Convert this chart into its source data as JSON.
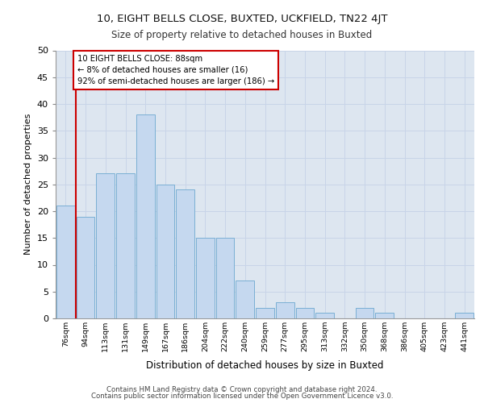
{
  "title1": "10, EIGHT BELLS CLOSE, BUXTED, UCKFIELD, TN22 4JT",
  "title2": "Size of property relative to detached houses in Buxted",
  "xlabel": "Distribution of detached houses by size in Buxted",
  "ylabel": "Number of detached properties",
  "categories": [
    "76sqm",
    "94sqm",
    "113sqm",
    "131sqm",
    "149sqm",
    "167sqm",
    "186sqm",
    "204sqm",
    "222sqm",
    "240sqm",
    "259sqm",
    "277sqm",
    "295sqm",
    "313sqm",
    "332sqm",
    "350sqm",
    "368sqm",
    "386sqm",
    "405sqm",
    "423sqm",
    "441sqm"
  ],
  "values": [
    21,
    19,
    27,
    27,
    38,
    25,
    24,
    15,
    15,
    7,
    2,
    3,
    2,
    1,
    0,
    2,
    1,
    0,
    0,
    0,
    1
  ],
  "bar_color": "#c5d8ef",
  "bar_edge_color": "#7aafd4",
  "annotation_text": "10 EIGHT BELLS CLOSE: 88sqm\n← 8% of detached houses are smaller (16)\n92% of semi-detached houses are larger (186) →",
  "annotation_box_color": "#ffffff",
  "annotation_box_edge_color": "#cc0000",
  "vline_color": "#cc0000",
  "grid_color": "#c8d4e8",
  "background_color": "#dde6f0",
  "footer1": "Contains HM Land Registry data © Crown copyright and database right 2024.",
  "footer2": "Contains public sector information licensed under the Open Government Licence v3.0.",
  "ylim": [
    0,
    50
  ],
  "yticks": [
    0,
    5,
    10,
    15,
    20,
    25,
    30,
    35,
    40,
    45,
    50
  ]
}
